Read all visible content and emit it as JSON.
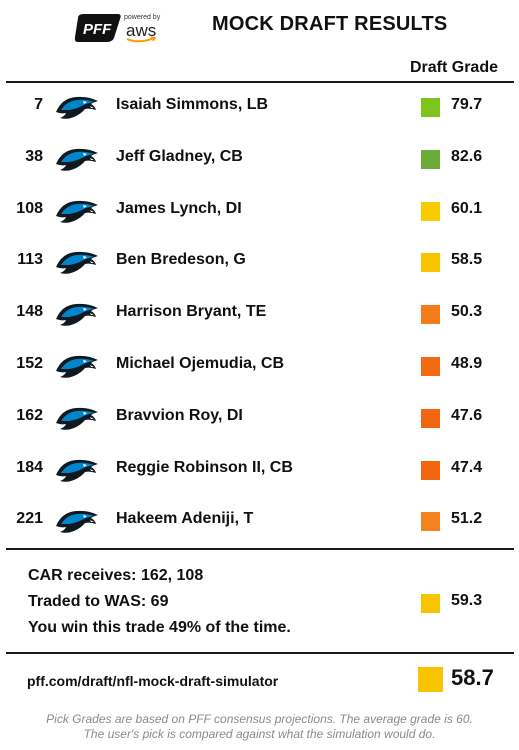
{
  "header": {
    "logo": {
      "pff": "PFF",
      "powered_by": "powered by",
      "aws": "aws"
    },
    "title": "MOCK DRAFT RESULTS"
  },
  "columns": {
    "grade_header": "Draft Grade"
  },
  "picks": [
    {
      "pick": "7",
      "player": "Isaiah Simmons, LB",
      "grade": "79.7",
      "grade_color": "#7fc41c"
    },
    {
      "pick": "38",
      "player": "Jeff Gladney, CB",
      "grade": "82.6",
      "grade_color": "#6aab3a"
    },
    {
      "pick": "108",
      "player": "James Lynch, DI",
      "grade": "60.1",
      "grade_color": "#f8cc00"
    },
    {
      "pick": "113",
      "player": "Ben Bredeson, G",
      "grade": "58.5",
      "grade_color": "#f8c400"
    },
    {
      "pick": "148",
      "player": "Harrison Bryant, TE",
      "grade": "50.3",
      "grade_color": "#f47c1b"
    },
    {
      "pick": "152",
      "player": "Michael Ojemudia, CB",
      "grade": "48.9",
      "grade_color": "#f26b14"
    },
    {
      "pick": "162",
      "player": "Bravvion Roy, DI",
      "grade": "47.6",
      "grade_color": "#f2660f"
    },
    {
      "pick": "184",
      "player": "Reggie Robinson II, CB",
      "grade": "47.4",
      "grade_color": "#f2660f"
    },
    {
      "pick": "221",
      "player": "Hakeem Adeniji, T",
      "grade": "51.2",
      "grade_color": "#f48320"
    }
  ],
  "trade": {
    "receives": "CAR receives: 162, 108",
    "traded_to": "Traded to WAS: 69",
    "win_text": "You win this trade 49% of the time.",
    "grade": "59.3",
    "grade_color": "#f8c400"
  },
  "footer": {
    "url": "pff.com/draft/nfl-mock-draft-simulator",
    "final_grade": "58.7",
    "final_grade_color": "#f8c400",
    "note_line1": "Pick Grades are based on PFF consensus projections. The average grade is 60.",
    "note_line2": "The user's pick is compared against what the simulation would do."
  },
  "team_logo_icon": "carolina-panthers-logo-icon",
  "colors": {
    "panther_blue": "#0085ca",
    "panther_black": "#101820"
  }
}
